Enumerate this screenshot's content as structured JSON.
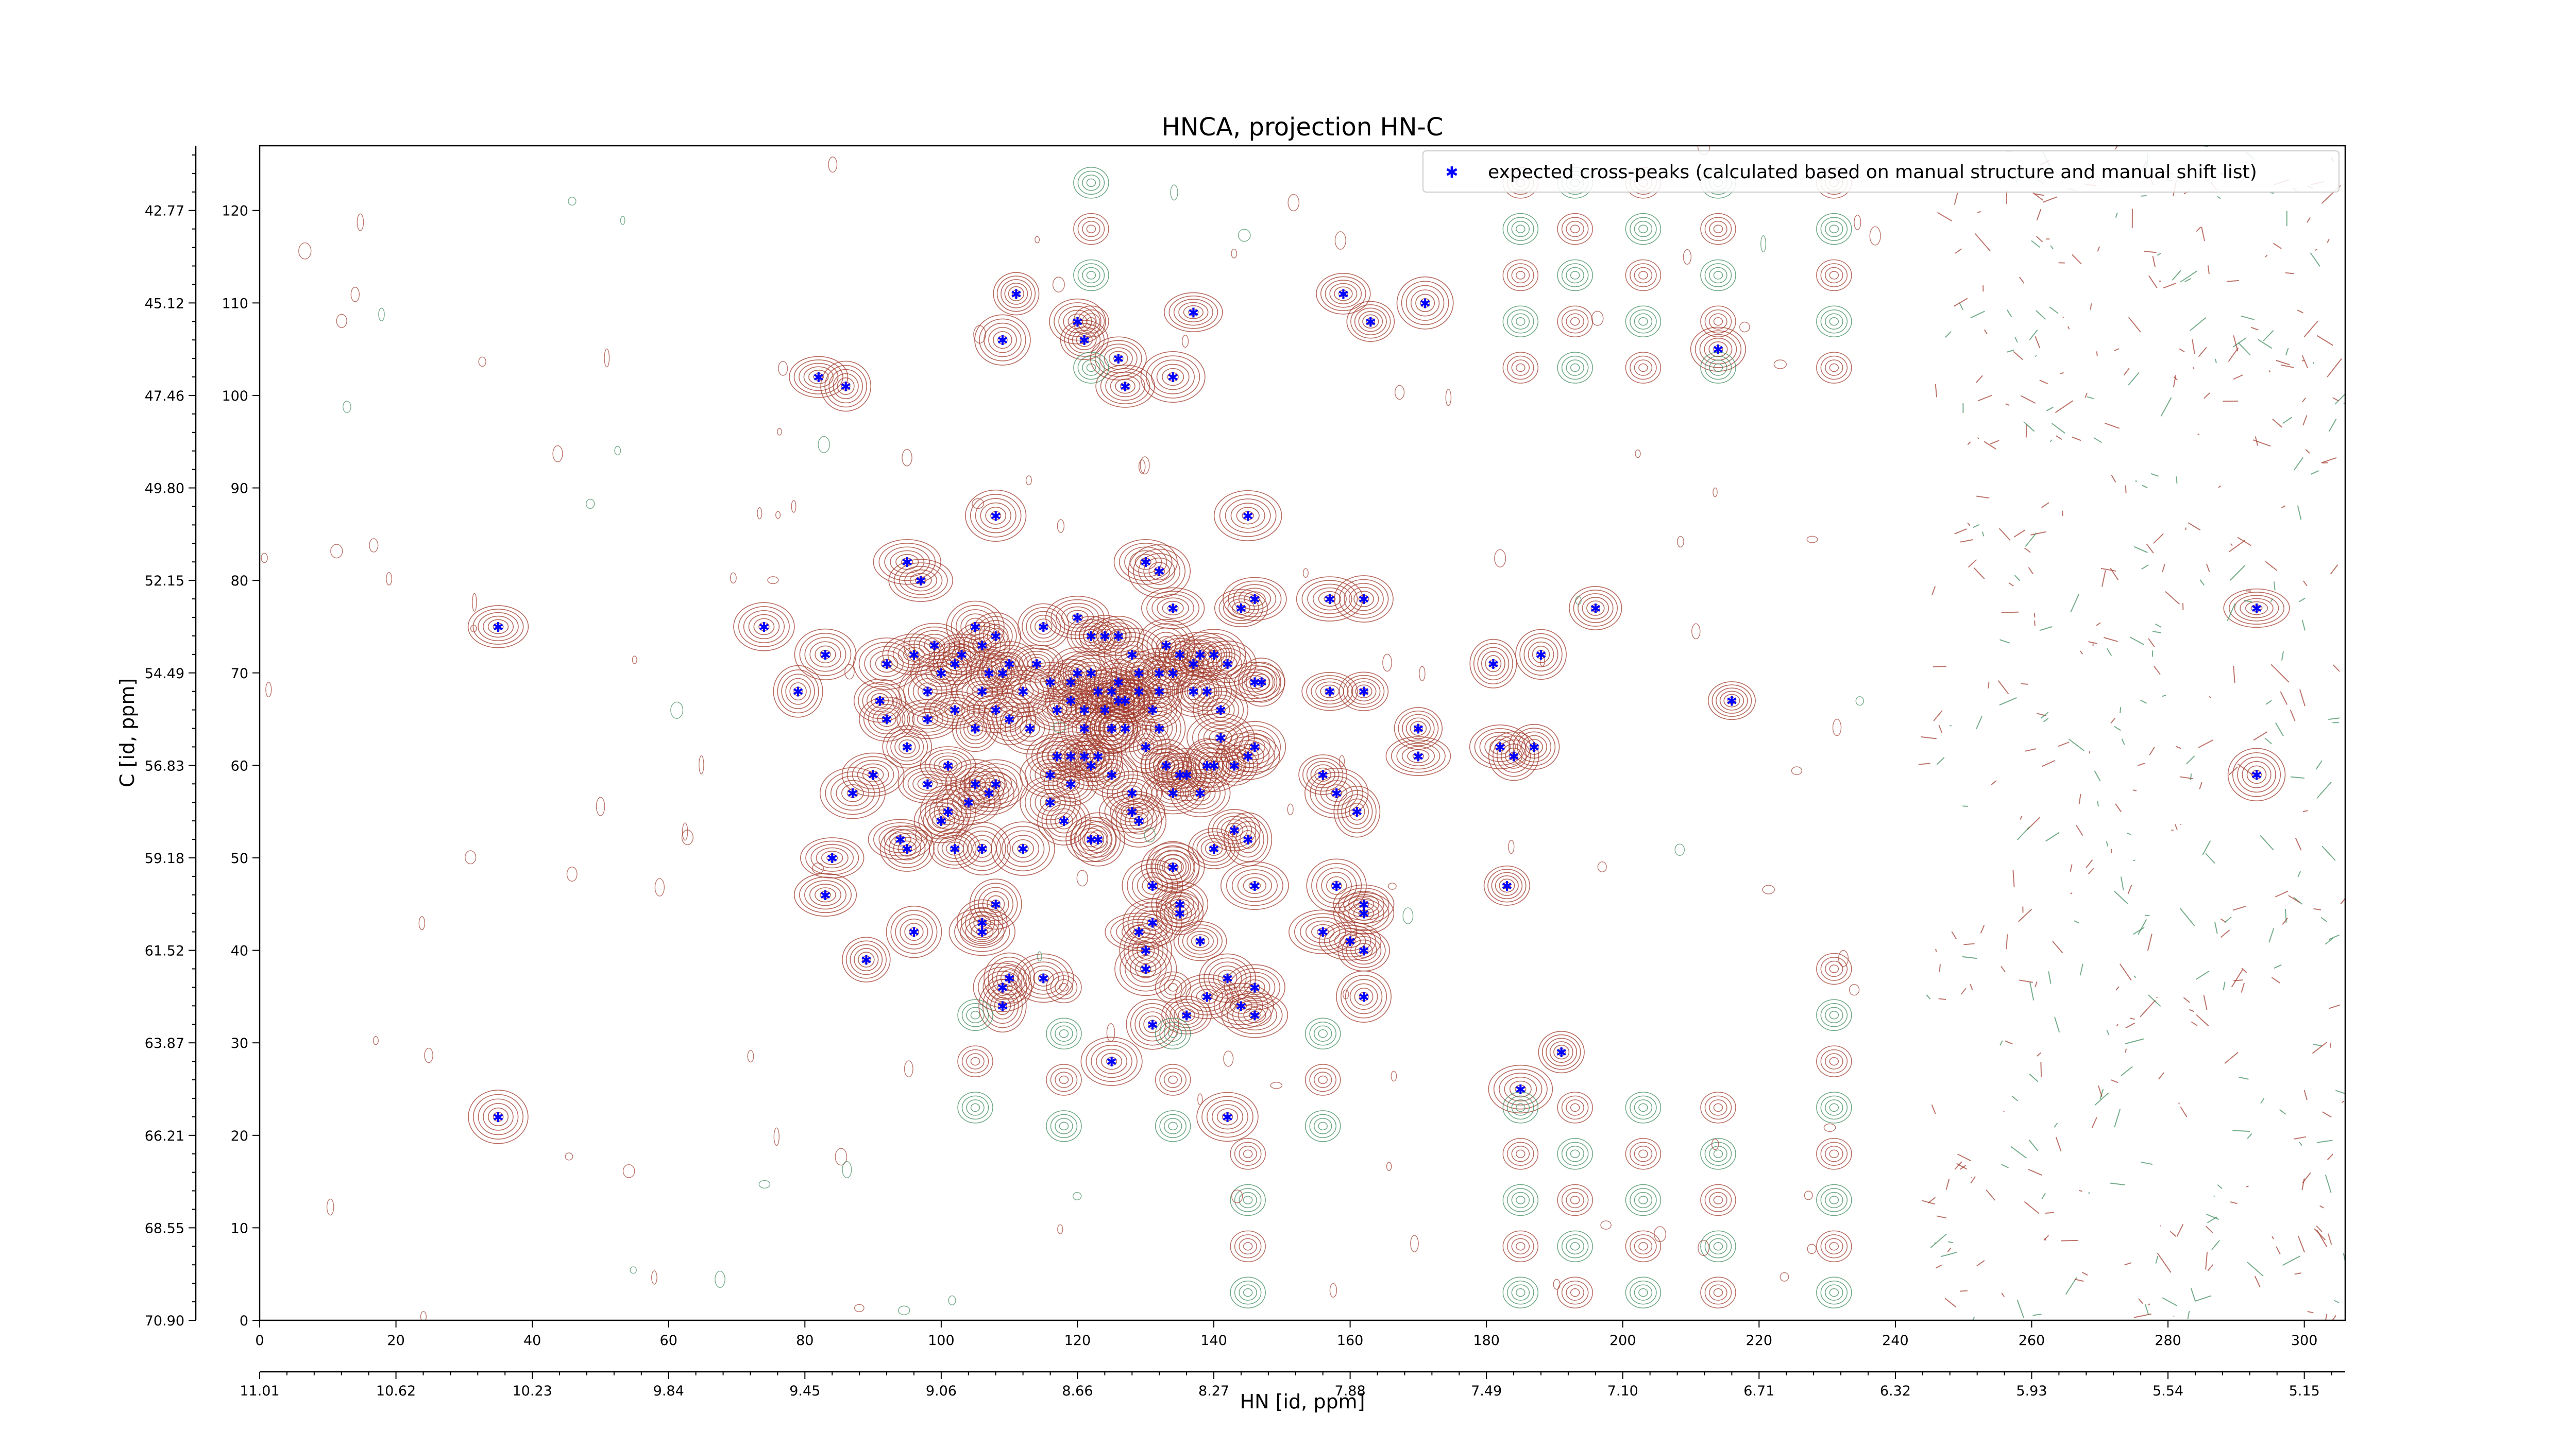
{
  "chart_data": {
    "type": "scatter",
    "title": "HNCA, projection HN-C",
    "xlabel": "HN [id, ppm]",
    "ylabel": "C [id, ppm]",
    "xlim": [
      0,
      306
    ],
    "ylim": [
      0,
      127
    ],
    "x_index_ticks": [
      "0",
      "20",
      "40",
      "60",
      "80",
      "100",
      "120",
      "140",
      "160",
      "180",
      "200",
      "220",
      "240",
      "260",
      "280",
      "300"
    ],
    "y_index_ticks": [
      "0",
      "10",
      "20",
      "30",
      "40",
      "50",
      "60",
      "70",
      "80",
      "90",
      "100",
      "110",
      "120"
    ],
    "x_ppm_ticks": [
      "11.01",
      "10.62",
      "10.23",
      "9.84",
      "9.45",
      "9.06",
      "8.66",
      "8.27",
      "7.88",
      "7.49",
      "7.10",
      "6.71",
      "6.32",
      "5.93",
      "5.54",
      "5.15"
    ],
    "y_ppm_ticks": [
      "70.90",
      "68.55",
      "66.21",
      "63.87",
      "61.52",
      "59.18",
      "56.83",
      "54.49",
      "52.15",
      "49.80",
      "47.46",
      "45.12",
      "42.77"
    ],
    "legend": {
      "placement": "top-right",
      "label": "expected cross-peaks (calculated based on manual structure and manual shift list)"
    },
    "colors": {
      "marker": "#0000ff",
      "positive_contour": "#a0382a",
      "negative_contour": "#3a8a5a",
      "axes": "#000000"
    },
    "series": [
      {
        "name": "expected cross-peaks (calculated based on manual structure and manual shift list)",
        "points": [
          [
            35,
            75
          ],
          [
            35,
            22
          ],
          [
            74,
            75
          ],
          [
            79,
            68
          ],
          [
            83,
            72
          ],
          [
            83,
            46
          ],
          [
            84,
            50
          ],
          [
            82,
            102
          ],
          [
            86,
            101
          ],
          [
            87,
            57
          ],
          [
            89,
            39
          ],
          [
            90,
            59
          ],
          [
            91,
            67
          ],
          [
            92,
            71
          ],
          [
            92,
            65
          ],
          [
            94,
            52
          ],
          [
            95,
            62
          ],
          [
            95,
            51
          ],
          [
            95,
            82
          ],
          [
            96,
            72
          ],
          [
            96,
            42
          ],
          [
            97,
            80
          ],
          [
            98,
            68
          ],
          [
            98,
            65
          ],
          [
            98,
            58
          ],
          [
            99,
            73
          ],
          [
            100,
            70
          ],
          [
            100,
            54
          ],
          [
            101,
            55
          ],
          [
            101,
            60
          ],
          [
            102,
            51
          ],
          [
            102,
            66
          ],
          [
            102,
            71
          ],
          [
            103,
            72
          ],
          [
            104,
            56
          ],
          [
            105,
            75
          ],
          [
            105,
            58
          ],
          [
            105,
            64
          ],
          [
            106,
            73
          ],
          [
            106,
            68
          ],
          [
            106,
            51
          ],
          [
            106,
            43
          ],
          [
            106,
            42
          ],
          [
            107,
            70
          ],
          [
            107,
            57
          ],
          [
            108,
            58
          ],
          [
            108,
            45
          ],
          [
            108,
            66
          ],
          [
            108,
            74
          ],
          [
            108,
            87
          ],
          [
            109,
            36
          ],
          [
            109,
            34
          ],
          [
            109,
            70
          ],
          [
            109,
            106
          ],
          [
            110,
            65
          ],
          [
            110,
            37
          ],
          [
            110,
            71
          ],
          [
            111,
            111
          ],
          [
            112,
            68
          ],
          [
            112,
            51
          ],
          [
            113,
            64
          ],
          [
            114,
            71
          ],
          [
            115,
            75
          ],
          [
            115,
            37
          ],
          [
            116,
            59
          ],
          [
            116,
            56
          ],
          [
            116,
            69
          ],
          [
            117,
            66
          ],
          [
            117,
            61
          ],
          [
            118,
            54
          ],
          [
            119,
            58
          ],
          [
            119,
            67
          ],
          [
            119,
            69
          ],
          [
            119,
            61
          ],
          [
            120,
            70
          ],
          [
            120,
            76
          ],
          [
            120,
            108
          ],
          [
            121,
            64
          ],
          [
            121,
            66
          ],
          [
            121,
            61
          ],
          [
            121,
            106
          ],
          [
            122,
            74
          ],
          [
            122,
            60
          ],
          [
            122,
            70
          ],
          [
            122,
            52
          ],
          [
            123,
            68
          ],
          [
            123,
            61
          ],
          [
            123,
            52
          ],
          [
            124,
            74
          ],
          [
            124,
            66
          ],
          [
            125,
            64
          ],
          [
            125,
            64
          ],
          [
            125,
            59
          ],
          [
            125,
            68
          ],
          [
            125,
            28
          ],
          [
            126,
            74
          ],
          [
            126,
            67
          ],
          [
            126,
            69
          ],
          [
            126,
            104
          ],
          [
            127,
            64
          ],
          [
            127,
            67
          ],
          [
            127,
            67
          ],
          [
            127,
            101
          ],
          [
            128,
            72
          ],
          [
            128,
            57
          ],
          [
            128,
            55
          ],
          [
            129,
            68
          ],
          [
            129,
            54
          ],
          [
            129,
            42
          ],
          [
            129,
            70
          ],
          [
            130,
            62
          ],
          [
            130,
            40
          ],
          [
            130,
            38
          ],
          [
            130,
            82
          ],
          [
            131,
            47
          ],
          [
            131,
            32
          ],
          [
            131,
            43
          ],
          [
            131,
            66
          ],
          [
            132,
            70
          ],
          [
            132,
            68
          ],
          [
            132,
            64
          ],
          [
            132,
            81
          ],
          [
            133,
            73
          ],
          [
            133,
            60
          ],
          [
            133,
            60
          ],
          [
            134,
            57
          ],
          [
            134,
            49
          ],
          [
            134,
            49
          ],
          [
            134,
            70
          ],
          [
            134,
            102
          ],
          [
            134,
            77
          ],
          [
            135,
            72
          ],
          [
            135,
            59
          ],
          [
            135,
            45
          ],
          [
            135,
            44
          ],
          [
            136,
            59
          ],
          [
            136,
            33
          ],
          [
            137,
            68
          ],
          [
            137,
            71
          ],
          [
            137,
            109
          ],
          [
            138,
            72
          ],
          [
            138,
            57
          ],
          [
            138,
            41
          ],
          [
            139,
            68
          ],
          [
            139,
            35
          ],
          [
            139,
            60
          ],
          [
            140,
            72
          ],
          [
            140,
            51
          ],
          [
            140,
            60
          ],
          [
            141,
            66
          ],
          [
            141,
            63
          ],
          [
            142,
            37
          ],
          [
            142,
            71
          ],
          [
            142,
            22
          ],
          [
            143,
            53
          ],
          [
            143,
            60
          ],
          [
            144,
            34
          ],
          [
            144,
            77
          ],
          [
            145,
            52
          ],
          [
            145,
            61
          ],
          [
            145,
            87
          ],
          [
            146,
            62
          ],
          [
            146,
            47
          ],
          [
            146,
            69
          ],
          [
            146,
            78
          ],
          [
            146,
            36
          ],
          [
            146,
            33
          ],
          [
            147,
            69
          ],
          [
            156,
            59
          ],
          [
            156,
            42
          ],
          [
            157,
            68
          ],
          [
            157,
            78
          ],
          [
            158,
            47
          ],
          [
            158,
            57
          ],
          [
            159,
            111
          ],
          [
            160,
            41
          ],
          [
            161,
            55
          ],
          [
            162,
            35
          ],
          [
            162,
            44
          ],
          [
            162,
            68
          ],
          [
            162,
            78
          ],
          [
            162,
            45
          ],
          [
            162,
            40
          ],
          [
            163,
            108
          ],
          [
            170,
            64
          ],
          [
            170,
            61
          ],
          [
            171,
            110
          ],
          [
            181,
            71
          ],
          [
            182,
            62
          ],
          [
            183,
            47
          ],
          [
            184,
            61
          ],
          [
            185,
            25
          ],
          [
            187,
            62
          ],
          [
            188,
            72
          ],
          [
            191,
            29
          ],
          [
            196,
            77
          ],
          [
            214,
            105
          ],
          [
            216,
            67
          ],
          [
            293,
            77
          ],
          [
            293,
            59
          ]
        ]
      }
    ]
  }
}
